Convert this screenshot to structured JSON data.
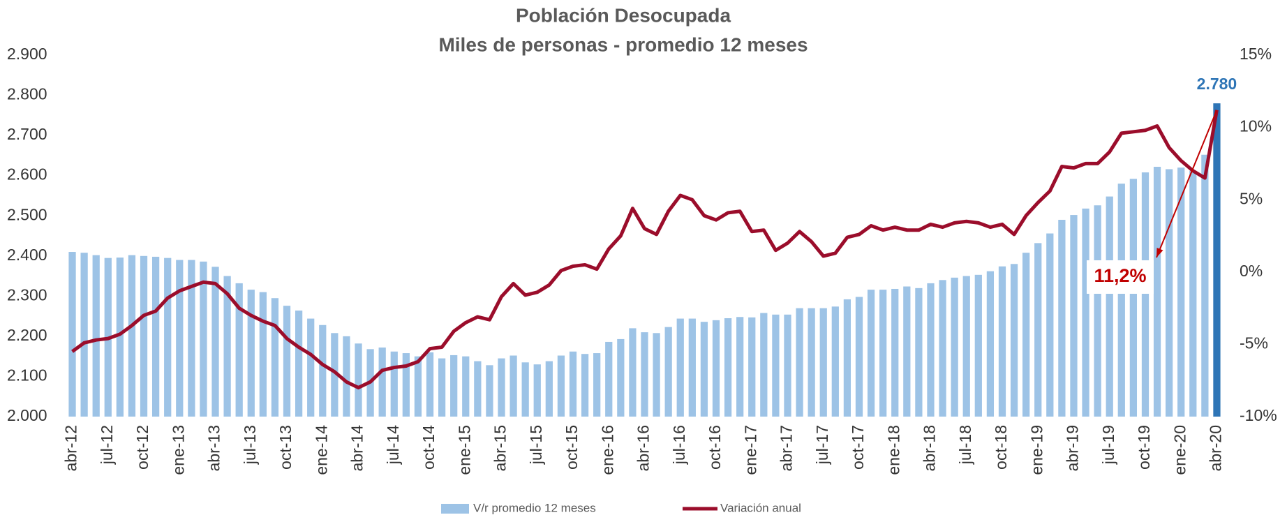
{
  "chart_data": {
    "type": "bar_line",
    "title": "Población Desocupada",
    "subtitle": "Miles de personas - promedio 12 meses",
    "categories": [
      "abr-12",
      null,
      null,
      "jul-12",
      null,
      null,
      "oct-12",
      null,
      null,
      "ene-13",
      null,
      null,
      "abr-13",
      null,
      null,
      "jul-13",
      null,
      null,
      "oct-13",
      null,
      null,
      "ene-14",
      null,
      null,
      "abr-14",
      null,
      null,
      "jul-14",
      null,
      null,
      "oct-14",
      null,
      null,
      "ene-15",
      null,
      null,
      "abr-15",
      null,
      null,
      "jul-15",
      null,
      null,
      "oct-15",
      null,
      null,
      "ene-16",
      null,
      null,
      "abr-16",
      null,
      null,
      "jul-16",
      null,
      null,
      "oct-16",
      null,
      null,
      "ene-17",
      null,
      null,
      "abr-17",
      null,
      null,
      "jul-17",
      null,
      null,
      "oct-17",
      null,
      null,
      "ene-18",
      null,
      null,
      "abr-18",
      null,
      null,
      "jul-18",
      null,
      null,
      "oct-18",
      null,
      null,
      "ene-19",
      null,
      null,
      "abr-19",
      null,
      null,
      "jul-19",
      null,
      null,
      "oct-19",
      null,
      null,
      "ene-20",
      null,
      null,
      "abr-20"
    ],
    "series": [
      {
        "name": "V/r promedio 12 meses",
        "type": "bar",
        "color": "#9dc3e6",
        "highlight_color": "#2e75b6",
        "values": [
          2410,
          2408,
          2402,
          2395,
          2396,
          2402,
          2400,
          2398,
          2395,
          2390,
          2390,
          2386,
          2373,
          2350,
          2332,
          2316,
          2310,
          2295,
          2276,
          2264,
          2244,
          2228,
          2208,
          2200,
          2182,
          2168,
          2172,
          2162,
          2158,
          2150,
          2160,
          2145,
          2153,
          2150,
          2138,
          2128,
          2145,
          2152,
          2135,
          2130,
          2138,
          2152,
          2162,
          2156,
          2158,
          2186,
          2193,
          2220,
          2210,
          2208,
          2223,
          2244,
          2244,
          2236,
          2240,
          2245,
          2248,
          2247,
          2258,
          2254,
          2254,
          2270,
          2270,
          2270,
          2274,
          2292,
          2298,
          2316,
          2316,
          2318,
          2324,
          2320,
          2332,
          2340,
          2346,
          2350,
          2353,
          2362,
          2374,
          2380,
          2408,
          2432,
          2456,
          2490,
          2502,
          2518,
          2526,
          2548,
          2580,
          2592,
          2608,
          2622,
          2616,
          2620,
          2612,
          2652,
          2780
        ],
        "value_labels": [
          null,
          null,
          null,
          null,
          null,
          null,
          null,
          null,
          null,
          null,
          null,
          null,
          null,
          null,
          null,
          null,
          null,
          null,
          null,
          null,
          null,
          null,
          null,
          null,
          null,
          null,
          null,
          null,
          null,
          null,
          null,
          null,
          null,
          null,
          null,
          null,
          null,
          null,
          null,
          null,
          null,
          null,
          null,
          null,
          null,
          null,
          null,
          null,
          null,
          null,
          null,
          null,
          null,
          null,
          null,
          null,
          null,
          null,
          null,
          null,
          null,
          null,
          null,
          null,
          null,
          null,
          null,
          null,
          null,
          null,
          null,
          null,
          null,
          null,
          null,
          null,
          null,
          null,
          null,
          null,
          null,
          null,
          null,
          null,
          null,
          null,
          null,
          null,
          null,
          null,
          null,
          null,
          null,
          null,
          null,
          null,
          "2.780"
        ]
      },
      {
        "name": "Variación anual",
        "type": "line",
        "axis": "y2",
        "color": "#9b0d2b",
        "values": [
          -5.5,
          -4.9,
          -4.7,
          -4.6,
          -4.3,
          -3.7,
          -3.0,
          -2.7,
          -1.8,
          -1.3,
          -1.0,
          -0.7,
          -0.8,
          -1.5,
          -2.5,
          -3.0,
          -3.4,
          -3.7,
          -4.6,
          -5.2,
          -5.7,
          -6.4,
          -6.9,
          -7.6,
          -8.0,
          -7.6,
          -6.8,
          -6.6,
          -6.5,
          -6.2,
          -5.3,
          -5.2,
          -4.1,
          -3.5,
          -3.1,
          -3.3,
          -1.7,
          -0.8,
          -1.6,
          -1.4,
          -0.9,
          0.1,
          0.4,
          0.5,
          0.2,
          1.6,
          2.5,
          4.4,
          3.0,
          2.6,
          4.2,
          5.3,
          5.0,
          3.9,
          3.6,
          4.1,
          4.2,
          2.8,
          2.9,
          1.5,
          2.0,
          2.8,
          2.1,
          1.1,
          1.3,
          2.4,
          2.6,
          3.2,
          2.9,
          3.1,
          2.9,
          2.9,
          3.3,
          3.1,
          3.4,
          3.5,
          3.4,
          3.1,
          3.3,
          2.6,
          3.9,
          4.8,
          5.6,
          7.3,
          7.2,
          7.5,
          7.5,
          8.3,
          9.6,
          9.7,
          9.8,
          10.1,
          8.6,
          7.7,
          7.0,
          6.5,
          11.2
        ]
      }
    ],
    "ylim": [
      2000,
      2900
    ],
    "yticks": [
      {
        "value": 2000,
        "label": "2.000"
      },
      {
        "value": 2100,
        "label": "2.100"
      },
      {
        "value": 2200,
        "label": "2.200"
      },
      {
        "value": 2300,
        "label": "2.300"
      },
      {
        "value": 2400,
        "label": "2.400"
      },
      {
        "value": 2500,
        "label": "2.500"
      },
      {
        "value": 2600,
        "label": "2.600"
      },
      {
        "value": 2700,
        "label": "2.700"
      },
      {
        "value": 2800,
        "label": "2.800"
      },
      {
        "value": 2900,
        "label": "2.900"
      }
    ],
    "y2lim": [
      -10,
      15
    ],
    "y2ticks": [
      {
        "value": -10,
        "label": "-10%"
      },
      {
        "value": -5,
        "label": "-5%"
      },
      {
        "value": 0,
        "label": "0%"
      },
      {
        "value": 5,
        "label": "5%"
      },
      {
        "value": 10,
        "label": "10%"
      },
      {
        "value": 15,
        "label": "15%"
      }
    ],
    "annotations": [
      {
        "text": "11,2%",
        "color": "#c00000"
      }
    ],
    "legend": "bottom"
  }
}
